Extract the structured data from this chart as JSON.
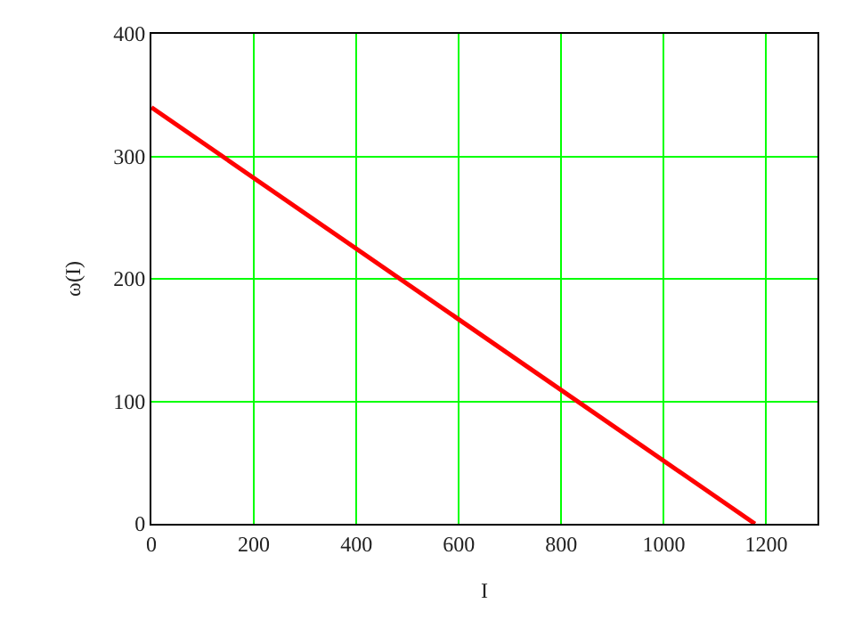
{
  "chart_data": {
    "type": "line",
    "xlabel": "I",
    "ylabel": "ω(I)",
    "series": [
      {
        "color": "#ff0000",
        "x": [
          0,
          1178
        ],
        "values": [
          340,
          0
        ]
      }
    ],
    "xlim": [
      0,
      1300
    ],
    "xticks": [
      0,
      200,
      400,
      600,
      800,
      1000,
      1200
    ],
    "ylim": [
      0,
      400
    ],
    "yticks": [
      0,
      100,
      200,
      300,
      400
    ],
    "grid": true,
    "marker": "none",
    "line_style": "solid"
  }
}
